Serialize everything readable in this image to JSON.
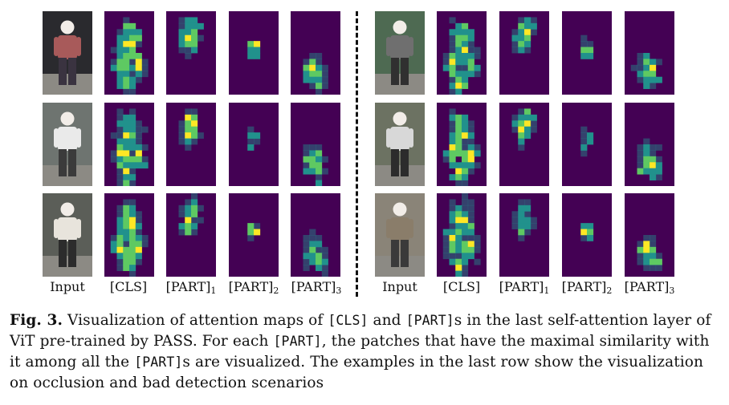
{
  "columns": [
    "Input",
    "[CLS]",
    "[PART]",
    "[PART]",
    "[PART]"
  ],
  "part_subscripts": [
    "1",
    "2",
    "3"
  ],
  "colors": {
    "attn_background": "#440154",
    "attn_mid": "#21918c",
    "attn_high": "#5ec962",
    "attn_peak": "#fde725"
  },
  "caption": {
    "fig_label": "Fig. 3.",
    "t1": " Visualization of attention maps of ",
    "cls": "[CLS]",
    "t2": " and ",
    "part": "[PART]",
    "t3": "s in the last self-attention layer of ViT pre-trained by PASS. For each ",
    "t4": ", the patches that have the maximal similarity with it among all the ",
    "t5": "s are visualized. The examples in the last row show the visualization on occlusion and bad detection scenarios"
  }
}
